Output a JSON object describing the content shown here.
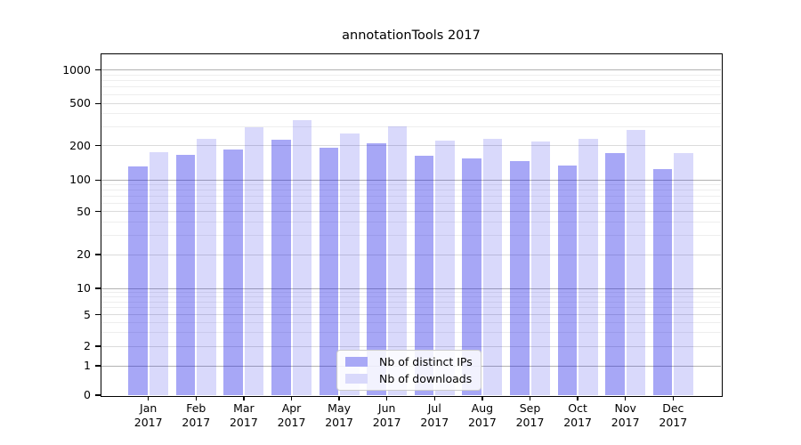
{
  "title": "annotationTools 2017",
  "chart_data": {
    "type": "bar",
    "months": [
      "Jan",
      "Feb",
      "Mar",
      "Apr",
      "May",
      "Jun",
      "Jul",
      "Aug",
      "Sep",
      "Oct",
      "Nov",
      "Dec"
    ],
    "year": "2017",
    "series": [
      {
        "key": "distinct-ips",
        "name": "Nb of distinct IPs",
        "values": [
          131,
          166,
          185,
          227,
          191,
          213,
          164,
          155,
          147,
          135,
          172,
          124
        ],
        "color": "#a8a8f6",
        "fill": "rgba(10,10,230,0.36)"
      },
      {
        "key": "downloads",
        "name": "Nb of downloads",
        "values": [
          176,
          233,
          297,
          350,
          263,
          303,
          222,
          232,
          219,
          231,
          284,
          174
        ],
        "color": "#d9d9fb",
        "fill": "rgba(10,10,230,0.155)"
      }
    ],
    "y_ticks": [
      0,
      1,
      2,
      5,
      10,
      20,
      50,
      100,
      200,
      500,
      1000
    ],
    "yscale": "symlog",
    "ylim": [
      0,
      1400
    ],
    "grid": true,
    "legend_position": "lower center",
    "xlabel": "",
    "ylabel": ""
  },
  "colors": {
    "grid_decade": "#b2b2b2",
    "grid_labeled": "#dbdbdb",
    "grid_minor": "#eeeeee",
    "axis": "#000000",
    "text": "#000000",
    "background": "#ffffff"
  }
}
